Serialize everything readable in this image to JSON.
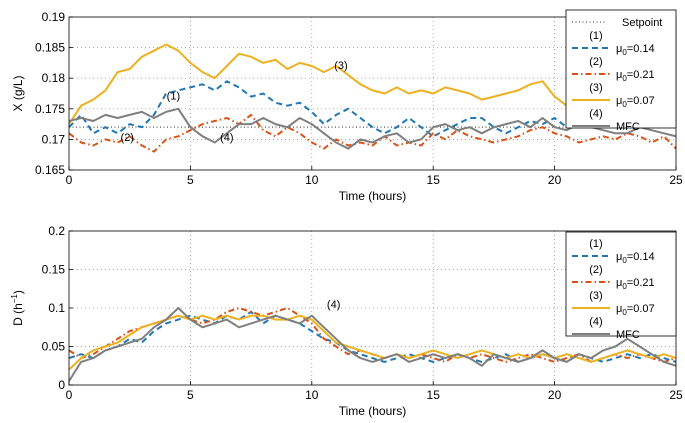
{
  "chart_data": [
    {
      "type": "line",
      "title": "",
      "xlabel": "Time (hours)",
      "ylabel": "X (g/L)",
      "xlim": [
        0,
        25
      ],
      "ylim": [
        0.165,
        0.19
      ],
      "xticks": [
        "0",
        "5",
        "10",
        "15",
        "20",
        "25"
      ],
      "yticks": [
        "0.165",
        "0.17",
        "0.175",
        "0.18",
        "0.185",
        "0.19"
      ],
      "grid": true,
      "legend_position": "top-right",
      "setpoint": {
        "name": "Setpoint",
        "value": 0.172,
        "color": "#555555"
      },
      "series": [
        {
          "name": "(1) μ0=0.14",
          "tag": "(1)",
          "label_sym": "μ",
          "label_sub": "0",
          "label_val": "=0.14",
          "color": "#1f77b4",
          "dash": "dash",
          "x": [
            0,
            0.5,
            1,
            1.5,
            2,
            2.5,
            3,
            3.5,
            4,
            4.5,
            5,
            5.5,
            6,
            6.5,
            7,
            7.5,
            8,
            8.5,
            9,
            9.5,
            10,
            10.5,
            11,
            11.5,
            12,
            12.5,
            13,
            13.5,
            14,
            14.5,
            15,
            15.5,
            16,
            16.5,
            17,
            17.5,
            18,
            18.5,
            19,
            19.5,
            20,
            20.5
          ],
          "y": [
            0.172,
            0.174,
            0.171,
            0.172,
            0.171,
            0.1725,
            0.172,
            0.174,
            0.1775,
            0.178,
            0.1785,
            0.179,
            0.178,
            0.1795,
            0.1785,
            0.177,
            0.1775,
            0.176,
            0.1755,
            0.176,
            0.1745,
            0.1725,
            0.174,
            0.175,
            0.1735,
            0.172,
            0.171,
            0.172,
            0.1735,
            0.172,
            0.1705,
            0.1715,
            0.1725,
            0.1735,
            0.1735,
            0.172,
            0.171,
            0.172,
            0.173,
            0.1725,
            0.1735,
            0.172
          ]
        },
        {
          "name": "(2) μ0=0.21",
          "tag": "(2)",
          "label_sym": "μ",
          "label_sub": "0",
          "label_val": "=0.21",
          "color": "#d95319",
          "dash": "dashdot",
          "x": [
            0,
            0.5,
            1,
            1.5,
            2,
            2.5,
            3,
            3.5,
            4,
            4.5,
            5,
            5.5,
            6,
            6.5,
            7,
            7.5,
            8,
            8.5,
            9,
            9.5,
            10,
            10.5,
            11,
            11.5,
            12,
            12.5,
            13,
            13.5,
            14,
            14.5,
            15,
            15.5,
            16,
            16.5,
            17,
            17.5,
            18,
            18.5,
            19,
            19.5,
            20,
            20.5,
            21,
            21.5,
            22,
            22.5,
            23,
            23.5,
            24,
            24.5,
            25
          ],
          "y": [
            0.171,
            0.1695,
            0.169,
            0.17,
            0.1695,
            0.1705,
            0.169,
            0.168,
            0.17,
            0.1705,
            0.1715,
            0.1725,
            0.173,
            0.1735,
            0.1725,
            0.174,
            0.1715,
            0.1705,
            0.172,
            0.171,
            0.1695,
            0.1685,
            0.17,
            0.169,
            0.1695,
            0.169,
            0.1705,
            0.169,
            0.1695,
            0.169,
            0.171,
            0.17,
            0.1715,
            0.1705,
            0.17,
            0.1695,
            0.17,
            0.1705,
            0.1715,
            0.172,
            0.171,
            0.1705,
            0.1695,
            0.17,
            0.1705,
            0.17,
            0.171,
            0.1705,
            0.1695,
            0.1705,
            0.1685
          ]
        },
        {
          "name": "(3) μ0=0.07",
          "tag": "(3)",
          "label_sym": "μ",
          "label_sub": "0",
          "label_val": "=0.07",
          "color": "#edb120",
          "dash": "solid",
          "x": [
            0,
            0.5,
            1,
            1.5,
            2,
            2.5,
            3,
            3.5,
            4,
            4.5,
            5,
            5.5,
            6,
            6.5,
            7,
            7.5,
            8,
            8.5,
            9,
            9.5,
            10,
            10.5,
            11,
            11.5,
            12,
            12.5,
            13,
            13.5,
            14,
            14.5,
            15,
            15.5,
            16,
            16.5,
            17,
            17.5,
            18,
            18.5,
            19,
            19.5,
            20,
            20.5
          ],
          "y": [
            0.1725,
            0.1755,
            0.1765,
            0.178,
            0.181,
            0.1815,
            0.1835,
            0.1845,
            0.1855,
            0.1845,
            0.1825,
            0.181,
            0.18,
            0.182,
            0.184,
            0.1835,
            0.1825,
            0.183,
            0.1815,
            0.1825,
            0.182,
            0.181,
            0.182,
            0.1805,
            0.179,
            0.178,
            0.1775,
            0.1785,
            0.1775,
            0.178,
            0.1775,
            0.1785,
            0.178,
            0.1775,
            0.1765,
            0.177,
            0.1775,
            0.178,
            0.179,
            0.1795,
            0.177,
            0.1755
          ]
        },
        {
          "name": "(4) MFC",
          "tag": "(4)",
          "label_sym": "",
          "label_sub": "",
          "label_val": "MFC",
          "color": "#7f7f7f",
          "dash": "solid",
          "x": [
            0,
            0.5,
            1,
            1.5,
            2,
            2.5,
            3,
            3.5,
            4,
            4.5,
            5,
            5.5,
            6,
            6.5,
            7,
            7.5,
            8,
            8.5,
            9,
            9.5,
            10,
            10.5,
            11,
            11.5,
            12,
            12.5,
            13,
            13.5,
            14,
            14.5,
            15,
            15.5,
            16,
            16.5,
            17,
            17.5,
            18,
            18.5,
            19,
            19.5,
            20,
            20.5,
            21,
            21.5,
            22,
            22.5,
            23,
            23.5,
            24,
            24.5,
            25
          ],
          "y": [
            0.173,
            0.1735,
            0.173,
            0.174,
            0.1735,
            0.174,
            0.1745,
            0.1735,
            0.1745,
            0.175,
            0.172,
            0.1705,
            0.1695,
            0.171,
            0.1725,
            0.1725,
            0.1735,
            0.1725,
            0.172,
            0.1735,
            0.1725,
            0.171,
            0.1695,
            0.1685,
            0.17,
            0.1695,
            0.1705,
            0.171,
            0.1695,
            0.17,
            0.172,
            0.1725,
            0.1715,
            0.172,
            0.171,
            0.172,
            0.1725,
            0.173,
            0.172,
            0.1735,
            0.172,
            0.1715,
            0.1725,
            0.172,
            0.1715,
            0.171,
            0.171,
            0.172,
            0.1715,
            0.171,
            0.1705
          ]
        }
      ],
      "annotations": [
        {
          "text": "(1)",
          "x": 4.3,
          "y": 0.1765
        },
        {
          "text": "(2)",
          "x": 2.4,
          "y": 0.1697
        },
        {
          "text": "(3)",
          "x": 11.2,
          "y": 0.1815
        },
        {
          "text": "(4)",
          "x": 6.5,
          "y": 0.1697
        }
      ]
    },
    {
      "type": "line",
      "title": "",
      "xlabel": "Time (hours)",
      "ylabel": "D (h⁻¹)",
      "xlim": [
        0,
        25
      ],
      "ylim": [
        0,
        0.2
      ],
      "xticks": [
        "0",
        "5",
        "10",
        "15",
        "20",
        "25"
      ],
      "yticks": [
        "0",
        "0.05",
        "0.1",
        "0.15",
        "0.2"
      ],
      "grid": true,
      "legend_position": "top-right",
      "series": [
        {
          "name": "(1) μ0=0.14",
          "tag": "(1)",
          "label_sym": "μ",
          "label_sub": "0",
          "label_val": "=0.14",
          "color": "#1f77b4",
          "dash": "dash",
          "x": [
            0,
            0.5,
            1,
            1.5,
            2,
            2.5,
            3,
            3.5,
            4,
            4.5,
            5,
            5.5,
            6,
            6.5,
            7,
            7.5,
            8,
            8.5,
            9,
            9.5,
            10,
            10.5,
            11,
            11.5,
            12,
            12.5,
            13,
            13.5,
            14,
            14.5,
            15,
            15.5,
            16,
            16.5,
            17,
            17.5,
            18,
            18.5,
            19,
            19.5,
            20,
            20.5,
            21,
            21.5,
            22,
            22.5,
            23,
            23.5,
            24,
            24.5,
            25
          ],
          "y": [
            0.035,
            0.04,
            0.035,
            0.045,
            0.05,
            0.06,
            0.055,
            0.07,
            0.08,
            0.085,
            0.09,
            0.085,
            0.08,
            0.09,
            0.085,
            0.095,
            0.08,
            0.09,
            0.085,
            0.08,
            0.07,
            0.06,
            0.055,
            0.045,
            0.04,
            0.035,
            0.03,
            0.035,
            0.04,
            0.035,
            0.03,
            0.035,
            0.04,
            0.035,
            0.03,
            0.035,
            0.04,
            0.03,
            0.035,
            0.04,
            0.035,
            0.03,
            0.04,
            0.035,
            0.03,
            0.035,
            0.04,
            0.035,
            0.04,
            0.035,
            0.03
          ]
        },
        {
          "name": "(2) μ0=0.21",
          "tag": "(2)",
          "label_sym": "μ",
          "label_sub": "0",
          "label_val": "=0.21",
          "color": "#d95319",
          "dash": "dashdot",
          "x": [
            0,
            0.5,
            1,
            1.5,
            2,
            2.5,
            3,
            3.5,
            4,
            4.5,
            5,
            5.5,
            6,
            6.5,
            7,
            7.5,
            8,
            8.5,
            9,
            9.5,
            10,
            10.5,
            11,
            11.5,
            12,
            12.5,
            13,
            13.5,
            14,
            14.5,
            15,
            15.5,
            16,
            16.5,
            17,
            17.5,
            18,
            18.5,
            19,
            19.5,
            20,
            20.5,
            21,
            21.5,
            22,
            22.5,
            23,
            23.5,
            24,
            24.5,
            25
          ],
          "y": [
            0.045,
            0.035,
            0.04,
            0.05,
            0.06,
            0.07,
            0.075,
            0.08,
            0.085,
            0.09,
            0.085,
            0.08,
            0.085,
            0.095,
            0.1,
            0.095,
            0.09,
            0.095,
            0.1,
            0.09,
            0.08,
            0.06,
            0.05,
            0.04,
            0.045,
            0.04,
            0.035,
            0.04,
            0.035,
            0.04,
            0.035,
            0.03,
            0.04,
            0.035,
            0.04,
            0.035,
            0.03,
            0.035,
            0.04,
            0.035,
            0.03,
            0.035,
            0.04,
            0.03,
            0.035,
            0.04,
            0.035,
            0.04,
            0.035,
            0.03,
            0.035
          ]
        },
        {
          "name": "(3) μ0=0.07",
          "tag": "(3)",
          "label_sym": "μ",
          "label_sub": "0",
          "label_val": "=0.07",
          "color": "#edb120",
          "dash": "solid",
          "x": [
            0,
            0.5,
            1,
            1.5,
            2,
            2.5,
            3,
            3.5,
            4,
            4.5,
            5,
            5.5,
            6,
            6.5,
            7,
            7.5,
            8,
            8.5,
            9,
            9.5,
            10,
            10.5,
            11,
            11.5,
            12,
            12.5,
            13,
            13.5,
            14,
            14.5,
            15,
            15.5,
            16,
            16.5,
            17,
            17.5,
            18,
            18.5,
            19,
            19.5,
            20,
            20.5,
            21,
            21.5,
            22,
            22.5,
            23,
            23.5,
            24,
            24.5,
            25
          ],
          "y": [
            0.02,
            0.035,
            0.045,
            0.05,
            0.055,
            0.065,
            0.075,
            0.08,
            0.085,
            0.09,
            0.085,
            0.09,
            0.085,
            0.09,
            0.085,
            0.09,
            0.09,
            0.085,
            0.085,
            0.09,
            0.085,
            0.07,
            0.055,
            0.05,
            0.045,
            0.04,
            0.035,
            0.04,
            0.035,
            0.04,
            0.045,
            0.04,
            0.035,
            0.04,
            0.045,
            0.04,
            0.035,
            0.04,
            0.035,
            0.04,
            0.035,
            0.04,
            0.035,
            0.03,
            0.035,
            0.04,
            0.045,
            0.04,
            0.035,
            0.04,
            0.035
          ]
        },
        {
          "name": "(4) MFC",
          "tag": "(4)",
          "label_sym": "",
          "label_sub": "",
          "label_val": "MFC",
          "color": "#7f7f7f",
          "dash": "solid",
          "x": [
            0,
            0.5,
            1,
            1.5,
            2,
            2.5,
            3,
            3.5,
            4,
            4.5,
            5,
            5.5,
            6,
            6.5,
            7,
            7.5,
            8,
            8.5,
            9,
            9.5,
            10,
            10.5,
            11,
            11.5,
            12,
            12.5,
            13,
            13.5,
            14,
            14.5,
            15,
            15.5,
            16,
            16.5,
            17,
            17.5,
            18,
            18.5,
            19,
            19.5,
            20,
            20.5,
            21,
            21.5,
            22,
            22.5,
            23,
            23.5,
            24,
            24.5,
            25
          ],
          "y": [
            0.005,
            0.03,
            0.035,
            0.045,
            0.05,
            0.055,
            0.06,
            0.075,
            0.085,
            0.1,
            0.085,
            0.075,
            0.08,
            0.085,
            0.075,
            0.08,
            0.085,
            0.09,
            0.085,
            0.08,
            0.09,
            0.075,
            0.06,
            0.045,
            0.035,
            0.03,
            0.035,
            0.04,
            0.03,
            0.035,
            0.04,
            0.035,
            0.04,
            0.035,
            0.025,
            0.04,
            0.035,
            0.03,
            0.035,
            0.045,
            0.035,
            0.03,
            0.04,
            0.035,
            0.045,
            0.05,
            0.06,
            0.05,
            0.04,
            0.03,
            0.025
          ]
        }
      ],
      "annotations": [
        {
          "text": "(4)",
          "x": 10.9,
          "y": 0.1
        }
      ]
    }
  ]
}
